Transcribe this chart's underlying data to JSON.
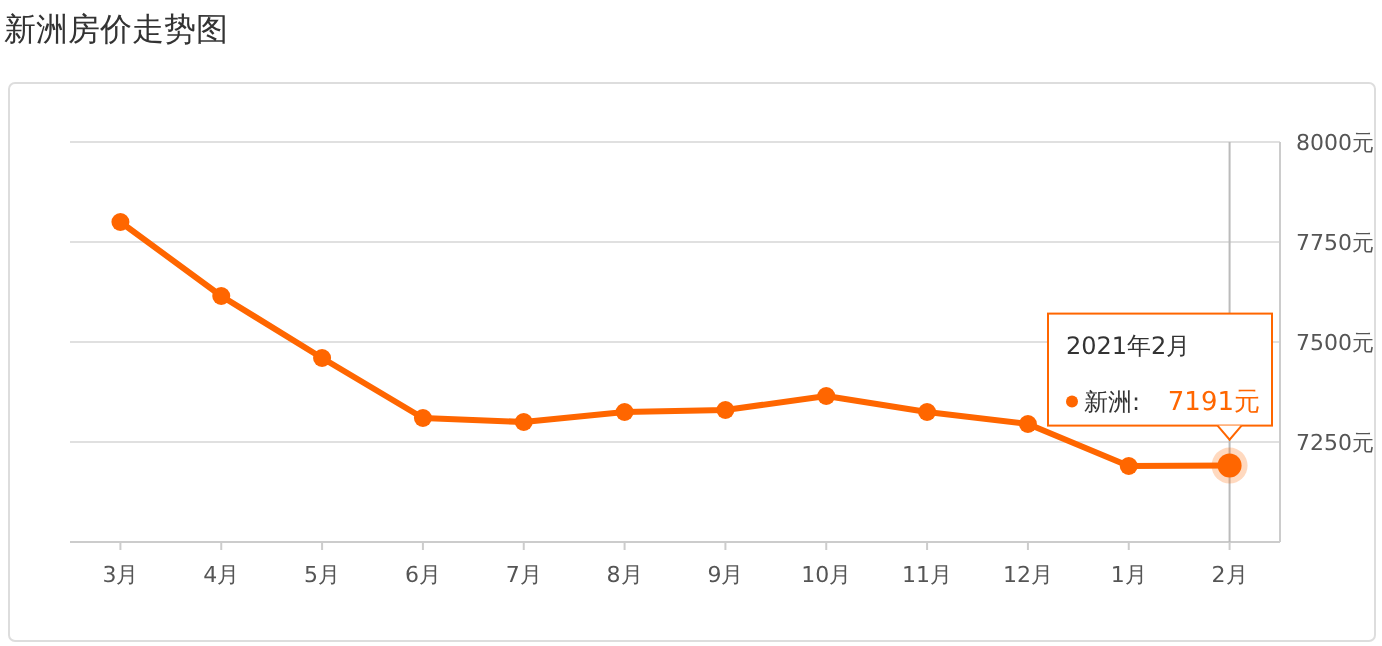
{
  "chart_data": {
    "type": "line",
    "title": "新洲房价走势图",
    "categories": [
      "3月",
      "4月",
      "5月",
      "6月",
      "7月",
      "8月",
      "9月",
      "10月",
      "11月",
      "12月",
      "1月",
      "2月"
    ],
    "series": [
      {
        "name": "新洲:",
        "color": "#ff6600",
        "values": [
          7800,
          7615,
          7460,
          7310,
          7300,
          7325,
          7330,
          7365,
          7325,
          7295,
          7190,
          7191
        ]
      }
    ],
    "ylim": [
      7000,
      8000
    ],
    "yticks": [
      {
        "value": 7000,
        "label": null
      },
      {
        "value": 7250,
        "label": "7250元"
      },
      {
        "value": 7500,
        "label": "7500元"
      },
      {
        "value": 7750,
        "label": "7750元"
      },
      {
        "value": 8000,
        "label": "8000元"
      }
    ],
    "grid": "y",
    "marker": "circle",
    "line_style": "solid",
    "ref_lines": [
      {
        "axis": "x",
        "value": "2月",
        "color": "#bbbbbb"
      }
    ],
    "annotations": [
      "2021年2月",
      "7191元"
    ]
  }
}
